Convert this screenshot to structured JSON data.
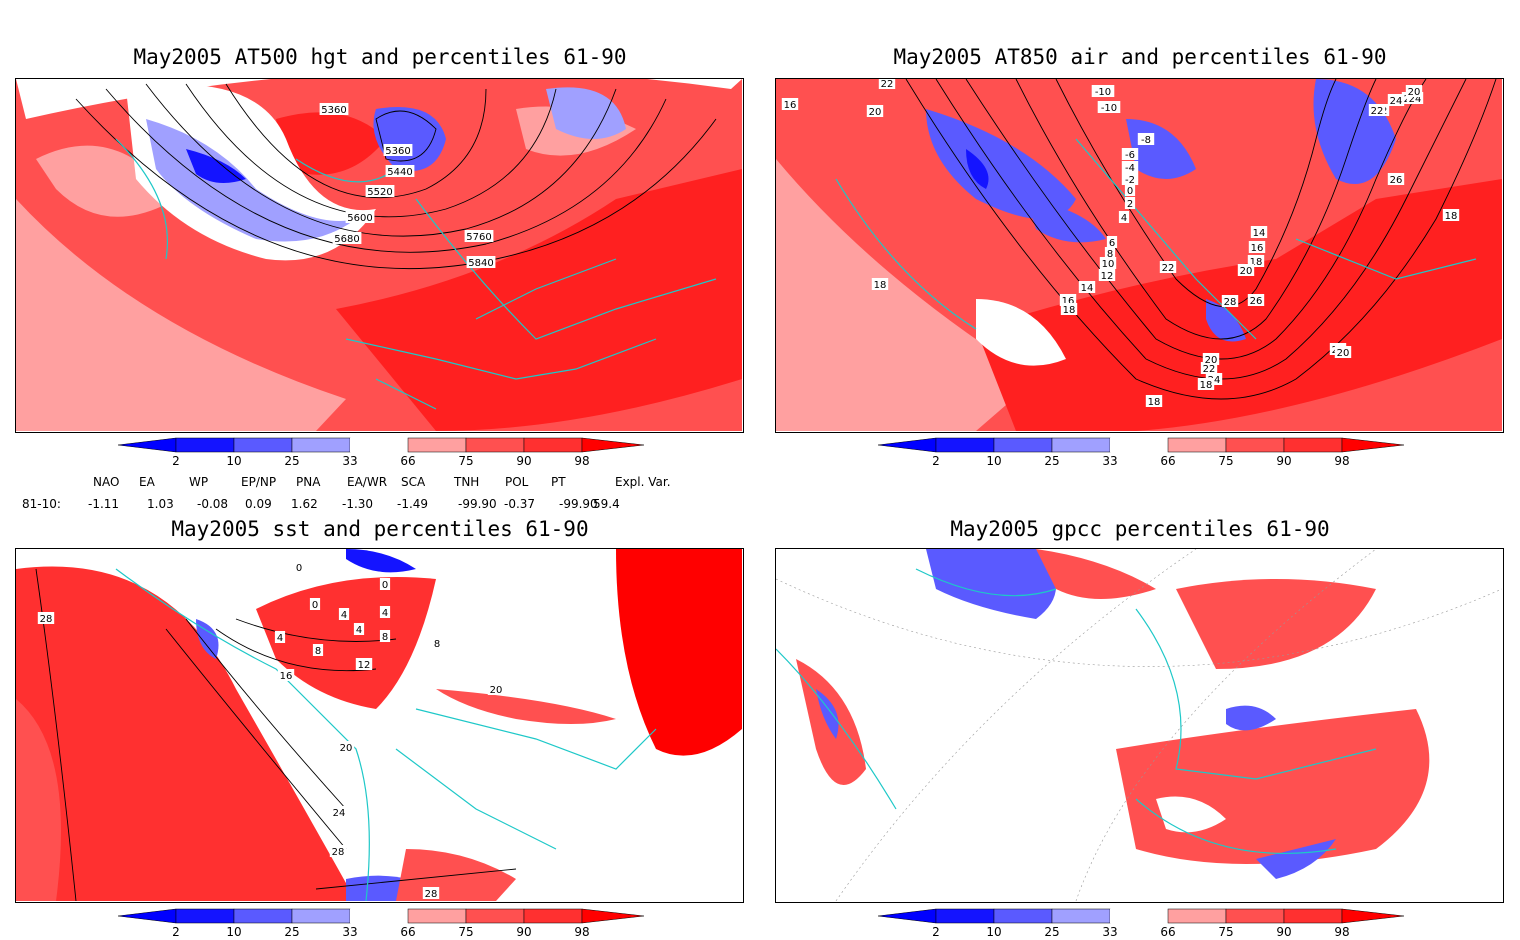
{
  "panels": [
    {
      "title": "May2005 AT500 hgt and percentiles 61-90",
      "contour_labels": [
        "5360",
        "5360",
        "5440",
        "5520",
        "5600",
        "5680",
        "5760",
        "5840"
      ]
    },
    {
      "title": "May2005 AT850 air and percentiles 61-90",
      "contour_labels": [
        "16",
        "20",
        "22",
        "-10",
        "-10",
        "-8",
        "-6",
        "-4",
        "-2",
        "0",
        "2",
        "4",
        "6",
        "8",
        "10",
        "12",
        "14",
        "16",
        "18",
        "18",
        "20",
        "22",
        "24",
        "26",
        "28",
        "26",
        "24",
        "22",
        "20",
        "18",
        "26",
        "24",
        "22",
        "20",
        "18",
        "18",
        "20",
        "14",
        "16",
        "18",
        "20",
        "22"
      ]
    },
    {
      "title": "May2005 sst and percentiles 61-90",
      "contour_labels": [
        "28",
        "0",
        "0",
        "0",
        "4",
        "4",
        "4",
        "4",
        "8",
        "8",
        "8",
        "12",
        "16",
        "20",
        "20",
        "24",
        "28",
        "28"
      ]
    },
    {
      "title": "May2005 gpcc percentiles 61-90",
      "contour_labels": []
    }
  ],
  "colorbar": {
    "labels": [
      "2",
      "10",
      "25",
      "33",
      "66",
      "75",
      "90",
      "98"
    ],
    "colors": {
      "blue_dark": "#1414ff",
      "blue_mid": "#5a5aff",
      "blue_light": "#a0a0ff",
      "red_light": "#ffa0a0",
      "red_mid": "#ff5050",
      "red_strong": "#ff3030",
      "red_dark": "#ff0000"
    },
    "coast_color": "#1ec8c8"
  },
  "indices": {
    "headers": [
      "NAO",
      "EA",
      "WP",
      "EP/NP",
      "PNA",
      "EA/WR",
      "SCA",
      "TNH",
      "POL",
      "PT",
      "Expl. Var."
    ],
    "row_label": "81-10:",
    "values": [
      "-1.11",
      "1.03",
      "-0.08",
      "0.09",
      "1.62",
      "-1.30",
      "-1.49",
      "-99.90",
      "-0.37",
      "-99.90",
      "59.4"
    ]
  }
}
